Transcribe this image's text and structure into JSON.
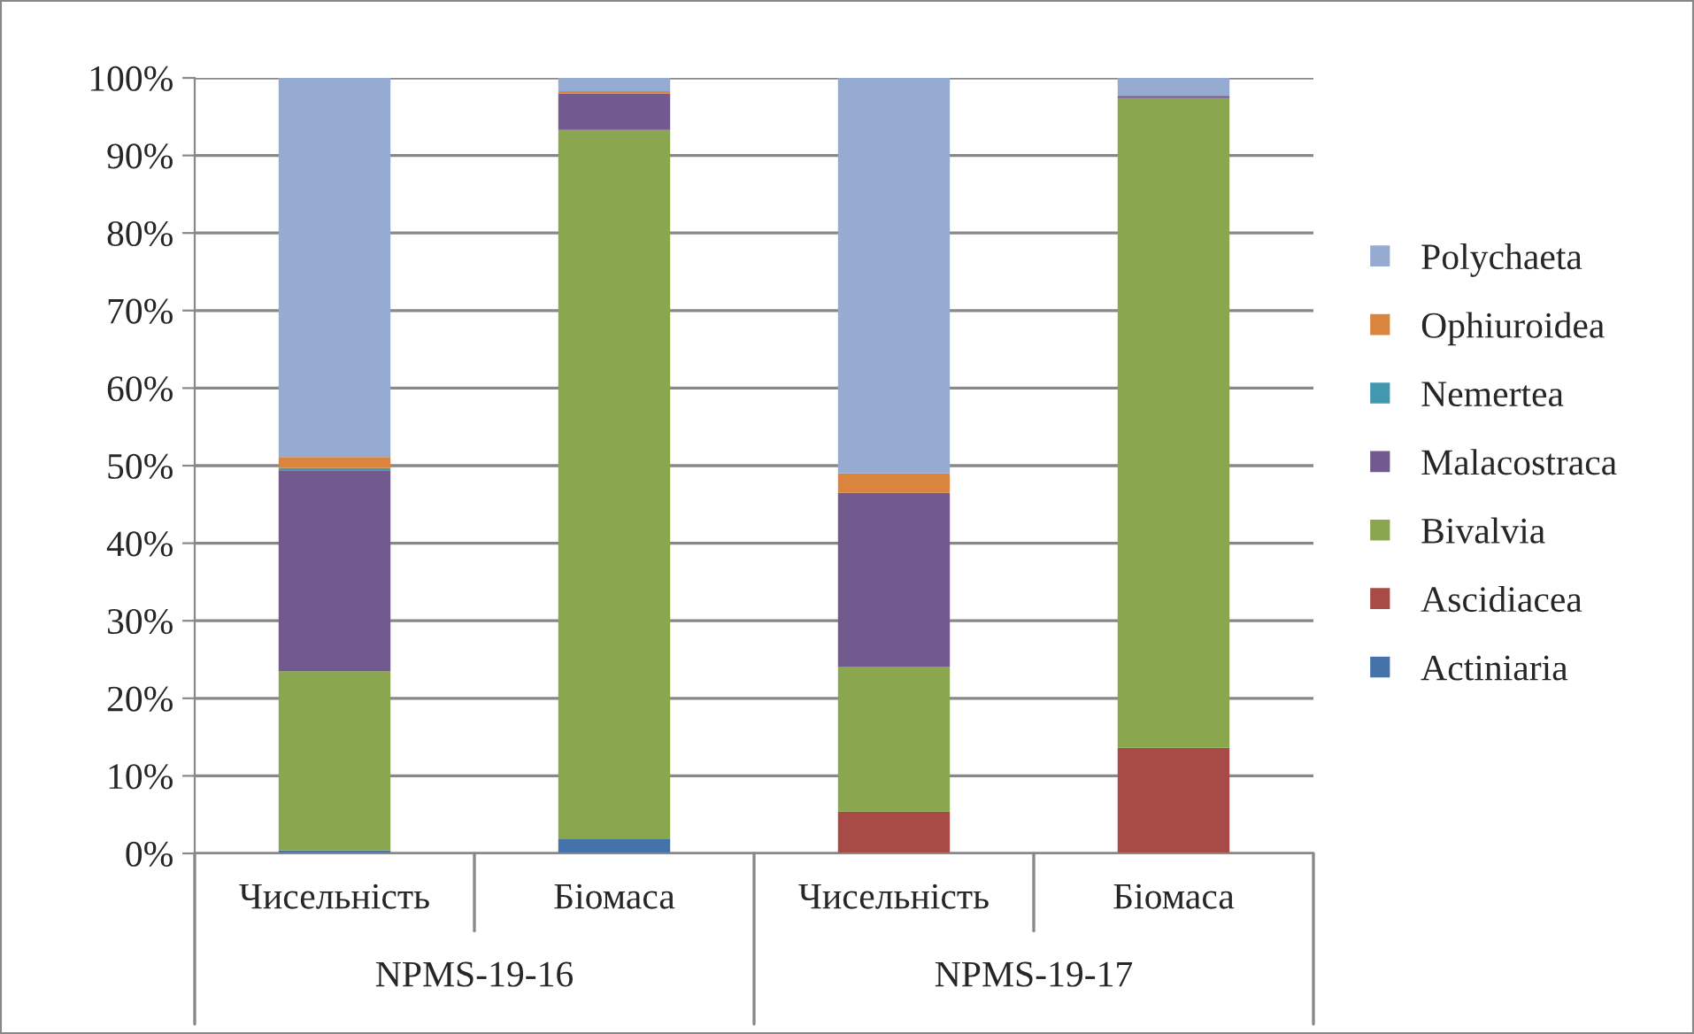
{
  "chart_data": {
    "type": "bar",
    "stacked": true,
    "categories": [
      "Чисельність",
      "Біомаса",
      "Чисельність",
      "Біомаса"
    ],
    "series": [
      {
        "name": "Actiniaria",
        "color": "#4672aa",
        "values": [
          0.4,
          1.9,
          0,
          0
        ]
      },
      {
        "name": "Ascidiacea",
        "color": "#a84a46",
        "values": [
          0,
          0,
          5.4,
          13.6
        ]
      },
      {
        "name": "Bivalvia",
        "color": "#8aa64e",
        "values": [
          23.1,
          91.4,
          18.7,
          83.8
        ]
      },
      {
        "name": "Malacostraca",
        "color": "#72598e",
        "values": [
          25.9,
          4.7,
          22.4,
          0.3
        ]
      },
      {
        "name": "Nemertea",
        "color": "#4198af",
        "values": [
          0.3,
          0,
          0,
          0
        ]
      },
      {
        "name": "Ophiuroidea",
        "color": "#db843d",
        "values": [
          1.4,
          0.3,
          2.5,
          0
        ]
      },
      {
        "name": "Polychaeta",
        "color": "#96abd2",
        "values": [
          48.9,
          1.7,
          51.0,
          2.3
        ]
      }
    ],
    "annotations": [
      "NPMS-19-16",
      "NPMS-19-17"
    ],
    "ylim": [
      0,
      100
    ],
    "yticks": [
      {
        "value": 0,
        "label": "0%"
      },
      {
        "value": 10,
        "label": "10%"
      },
      {
        "value": 20,
        "label": "20%"
      },
      {
        "value": 30,
        "label": "30%"
      },
      {
        "value": 40,
        "label": "40%"
      },
      {
        "value": 50,
        "label": "50%"
      },
      {
        "value": 60,
        "label": "60%"
      },
      {
        "value": 70,
        "label": "70%"
      },
      {
        "value": 80,
        "label": "80%"
      },
      {
        "value": 90,
        "label": "90%"
      },
      {
        "value": 100,
        "label": "100%"
      }
    ],
    "grid": "y",
    "legend": "right"
  }
}
